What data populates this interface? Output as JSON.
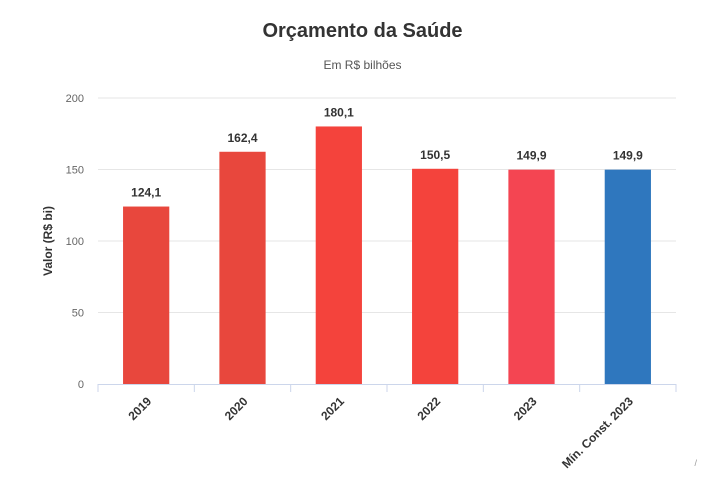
{
  "chart_data": {
    "type": "bar",
    "title": "Orçamento da Saúde",
    "subtitle": "Em R$ bilhões",
    "xlabel": "",
    "ylabel": "Valor (R$ bi)",
    "categories": [
      "2019",
      "2020",
      "2021",
      "2022",
      "2023",
      "Mín. Const. 2023"
    ],
    "values": [
      124.1,
      162.4,
      180.1,
      150.5,
      149.9,
      149.9
    ],
    "value_labels": [
      "124,1",
      "162,4",
      "180,1",
      "150,5",
      "149,9",
      "149,9"
    ],
    "colors": [
      "#e8473d",
      "#e8473d",
      "#f4433c",
      "#f4433c",
      "#f44552",
      "#2f77be"
    ],
    "ylim": [
      0,
      200
    ],
    "yticks": [
      0,
      50,
      100,
      150,
      200
    ],
    "grid": true,
    "legend": "none"
  }
}
